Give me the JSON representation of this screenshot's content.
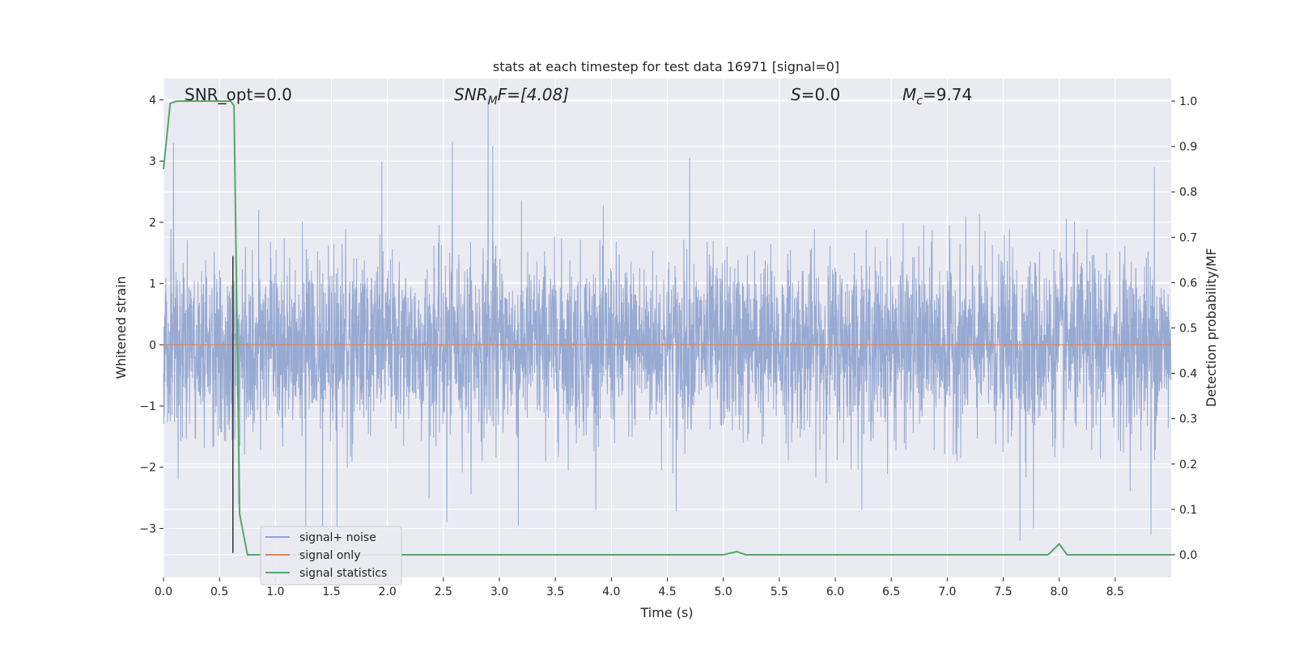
{
  "chart_data": {
    "type": "line",
    "title": "stats at each timestep for test data 16971 [signal=0]",
    "xlabel": "Time (s)",
    "ylabel_left": "Whitened strain",
    "ylabel_right": "Detection probability/MF",
    "xlim": [
      0.0,
      9.0
    ],
    "ylim_left": [
      -3.8,
      4.35
    ],
    "ylim_right": [
      -0.05,
      1.05
    ],
    "x_ticks": [
      "0.0",
      "0.5",
      "1.0",
      "1.5",
      "2.0",
      "2.5",
      "3.0",
      "3.5",
      "4.0",
      "4.5",
      "5.0",
      "5.5",
      "6.0",
      "6.5",
      "7.0",
      "7.5",
      "8.0",
      "8.5"
    ],
    "y_ticks_left": [
      "−3",
      "−2",
      "−1",
      "0",
      "1",
      "2",
      "3",
      "4"
    ],
    "y_ticks_right": [
      "0.0",
      "0.1",
      "0.2",
      "0.3",
      "0.4",
      "0.5",
      "0.6",
      "0.7",
      "0.8",
      "0.9",
      "1.0"
    ],
    "grid": true,
    "legend_position": "lower-left",
    "annotations": {
      "snr_opt": "SNR_opt=0.0",
      "snr_mf_main": "SNR",
      "snr_mf_sub": "M",
      "snr_mf_rest": "F=[4.08]",
      "s_main": "S",
      "s_rest": "=0.0",
      "mc_main": "M",
      "mc_sub": "c",
      "mc_rest": "=9.74"
    },
    "vline": {
      "x": 0.62,
      "y_range": [
        -3.4,
        1.45
      ]
    },
    "series": [
      {
        "name": "signal+ noise",
        "axis": "left",
        "color": "#8fa3ce",
        "kind": "noise",
        "std": 1.0,
        "spikes": [
          {
            "x": 0.09,
            "y": 3.3
          },
          {
            "x": 1.95,
            "y": 3.0
          },
          {
            "x": 2.58,
            "y": 3.32
          },
          {
            "x": 2.9,
            "y": 4.02
          },
          {
            "x": 2.94,
            "y": 3.25
          },
          {
            "x": 4.7,
            "y": 3.05
          },
          {
            "x": 8.85,
            "y": 2.9
          },
          {
            "x": 1.27,
            "y": -3.0
          },
          {
            "x": 1.42,
            "y": -3.2
          },
          {
            "x": 1.55,
            "y": -3.1
          },
          {
            "x": 2.53,
            "y": -2.9
          },
          {
            "x": 3.17,
            "y": -2.95
          },
          {
            "x": 4.58,
            "y": -2.72
          },
          {
            "x": 7.65,
            "y": -3.2
          },
          {
            "x": 7.77,
            "y": -3.0
          },
          {
            "x": 8.82,
            "y": -3.1
          },
          {
            "x": 0.67,
            "y": -2.6
          },
          {
            "x": 0.13,
            "y": -2.2
          }
        ]
      },
      {
        "name": "signal only",
        "axis": "left",
        "color": "#dd8452",
        "x": [
          0.0,
          9.0
        ],
        "y": [
          0.0,
          0.0
        ]
      },
      {
        "name": "signal statistics",
        "axis": "right",
        "color": "#55a868",
        "x": [
          0.0,
          0.06,
          0.12,
          0.6,
          0.63,
          0.68,
          0.75,
          0.8,
          5.0,
          5.12,
          5.2,
          7.9,
          8.0,
          8.07,
          9.0
        ],
        "y": [
          0.85,
          0.995,
          1.0,
          1.0,
          0.99,
          0.09,
          0.0,
          0.0,
          0.0,
          0.007,
          0.0,
          0.0,
          0.024,
          0.0,
          0.0
        ]
      }
    ]
  }
}
